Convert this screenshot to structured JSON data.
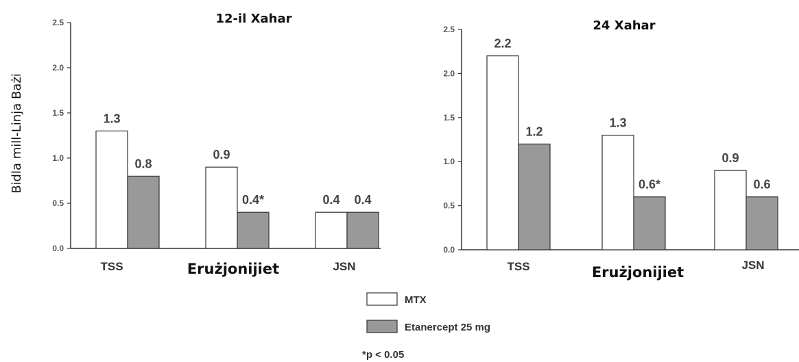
{
  "y_axis_label": "Bidla mill-Linja Bażi",
  "legend": {
    "items": [
      {
        "label": "MTX",
        "color": "#ffffff"
      },
      {
        "label": "Etanercept 25 mg",
        "color": "#999999"
      }
    ]
  },
  "footnote": "*p < 0.05",
  "colors": {
    "mtx": "#ffffff",
    "etanercept": "#999999",
    "stroke": "#333333"
  },
  "chart_data": [
    {
      "type": "bar",
      "title": "12-il Xahar",
      "ylabel": "Bidla mill-Linja Bażi",
      "ylim": [
        0,
        2.5
      ],
      "yticks": [
        "0.0",
        "0.5",
        "1.0",
        "1.5",
        "2.0",
        "2.5"
      ],
      "categories": [
        "TSS",
        "Erużjonijiet",
        "JSN"
      ],
      "series": [
        {
          "name": "MTX",
          "values": [
            1.3,
            0.9,
            0.4
          ],
          "labels": [
            "1.3",
            "0.9",
            "0.4"
          ]
        },
        {
          "name": "Etanercept 25 mg",
          "values": [
            0.8,
            0.4,
            0.4
          ],
          "labels": [
            "0.8",
            "0.4*",
            "0.4"
          ]
        }
      ]
    },
    {
      "type": "bar",
      "title": "24 Xahar",
      "ylabel": "",
      "ylim": [
        0,
        2.5
      ],
      "yticks": [
        "0.0",
        "0.5",
        "1.0",
        "1.5",
        "2.0",
        "2.5"
      ],
      "categories": [
        "TSS",
        "Erużjonijiet",
        "JSN"
      ],
      "series": [
        {
          "name": "MTX",
          "values": [
            2.2,
            1.3,
            0.9
          ],
          "labels": [
            "2.2",
            "1.3",
            "0.9"
          ]
        },
        {
          "name": "Etanercept 25 mg",
          "values": [
            1.2,
            0.6,
            0.6
          ],
          "labels": [
            "1.2",
            "0.6*",
            "0.6"
          ]
        }
      ]
    }
  ]
}
